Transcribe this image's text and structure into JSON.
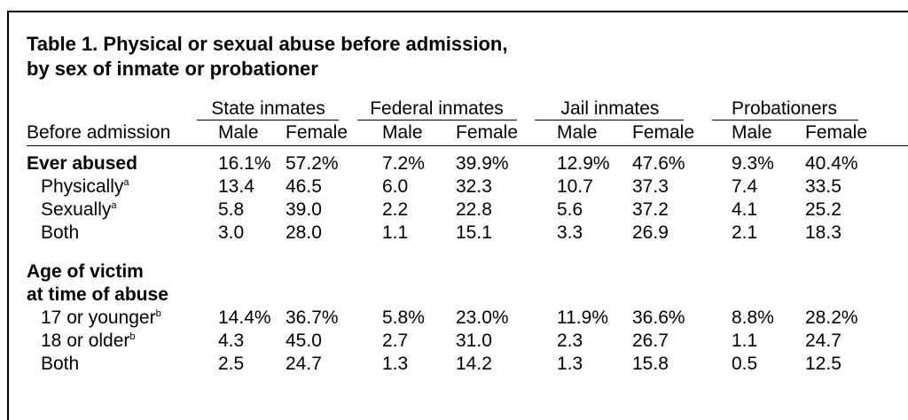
{
  "title": {
    "line1": "Table 1.  Physical or sexual abuse before admission,",
    "line2": "by sex of inmate or probationer"
  },
  "groups": [
    "State inmates",
    "Federal inmates",
    "Jail inmates",
    "Probationers"
  ],
  "stub_header": "Before admission",
  "subheaders": [
    "Male",
    "Female",
    "Male",
    "Female",
    "Male",
    "Female",
    "Male",
    "Female"
  ],
  "section1": {
    "heading": "Ever abused",
    "heading_values": [
      "16.1%",
      "57.2%",
      "7.2%",
      "39.9%",
      "12.9%",
      "47.6%",
      "9.3%",
      "40.4%"
    ],
    "rows": [
      {
        "label": "Physically",
        "note": "a",
        "values": [
          "13.4",
          "46.5",
          "6.0",
          "32.3",
          "10.7",
          "37.3",
          "7.4",
          "33.5"
        ]
      },
      {
        "label": "Sexually",
        "note": "a",
        "values": [
          "5.8",
          "39.0",
          "2.2",
          "22.8",
          "5.6",
          "37.2",
          "4.1",
          "25.2"
        ]
      },
      {
        "label": "Both",
        "note": "",
        "values": [
          "3.0",
          "28.0",
          "1.1",
          "15.1",
          "3.3",
          "26.9",
          "2.1",
          "18.3"
        ]
      }
    ]
  },
  "section2": {
    "heading1": "Age of victim",
    "heading2": "at time of abuse",
    "rows": [
      {
        "label": "17 or younger",
        "note": "b",
        "values": [
          "14.4%",
          "36.7%",
          "5.8%",
          "23.0%",
          "11.9%",
          "36.6%",
          "8.8%",
          "28.2%"
        ]
      },
      {
        "label": "18 or older",
        "note": "b",
        "values": [
          "4.3",
          "45.0",
          "2.7",
          "31.0",
          "2.3",
          "26.7",
          "1.1",
          "24.7"
        ]
      },
      {
        "label": "Both",
        "note": "",
        "values": [
          "2.5",
          "24.7",
          "1.3",
          "14.2",
          "1.3",
          "15.8",
          "0.5",
          "12.5"
        ]
      }
    ]
  }
}
